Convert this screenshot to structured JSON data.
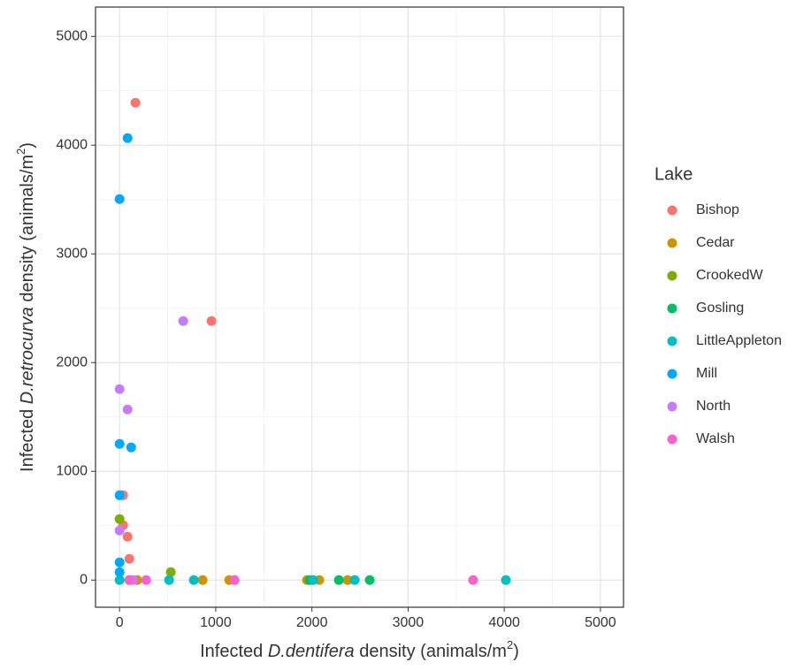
{
  "chart_data": {
    "type": "scatter",
    "x_label": [
      "Infected ",
      "D.dentifera",
      " density (animals/m",
      "2",
      ")"
    ],
    "y_label": [
      "Infected ",
      "D.retrocurva",
      " density (animals/m",
      "2",
      ")"
    ],
    "legend_title": "Lake",
    "xlim": [
      -250,
      5240
    ],
    "ylim": [
      -250,
      5270
    ],
    "xticks": [
      0,
      1000,
      2000,
      3000,
      4000,
      5000
    ],
    "yticks": [
      0,
      1000,
      2000,
      3000,
      4000,
      5000
    ],
    "minor_xticks": [
      500,
      1500,
      2500,
      3500,
      4500
    ],
    "minor_yticks": [
      500,
      1500,
      2500,
      3500,
      4500
    ],
    "grid": true,
    "series": [
      {
        "name": "Bishop",
        "color": "#F8766D",
        "x": [
          165,
          956,
          37,
          37,
          83,
          101,
          101
        ],
        "values": [
          4390,
          2382,
          780,
          504,
          398,
          195,
          0
        ]
      },
      {
        "name": "Cedar",
        "color": "#CD9600",
        "x": [
          864,
          1140,
          1949,
          2077,
          2371,
          184
        ],
        "values": [
          0,
          0,
          0,
          0,
          0,
          0
        ]
      },
      {
        "name": "CrookedW",
        "color": "#7CAE00",
        "x": [
          0,
          533
        ],
        "values": [
          561,
          73
        ]
      },
      {
        "name": "Gosling",
        "color": "#00BE67",
        "x": [
          2280,
          2601,
          1976
        ],
        "values": [
          0,
          0,
          0
        ]
      },
      {
        "name": "LittleAppleton",
        "color": "#00BFC4",
        "x": [
          0,
          515,
          772,
          2445,
          4017,
          2013
        ],
        "values": [
          0,
          0,
          0,
          0,
          0,
          0
        ]
      },
      {
        "name": "Mill",
        "color": "#00A9FF",
        "x": [
          83,
          0,
          0,
          120,
          0,
          0,
          0
        ],
        "values": [
          4065,
          3504,
          1252,
          1220,
          780,
          163,
          73
        ]
      },
      {
        "name": "North",
        "color": "#C77CFF",
        "x": [
          662,
          0,
          83,
          0,
          138
        ],
        "values": [
          2382,
          1756,
          1569,
          455,
          0
        ]
      },
      {
        "name": "Walsh",
        "color": "#FF61CC",
        "x": [
          101,
          276,
          1195,
          3676
        ],
        "values": [
          0,
          0,
          0,
          0
        ]
      }
    ]
  }
}
